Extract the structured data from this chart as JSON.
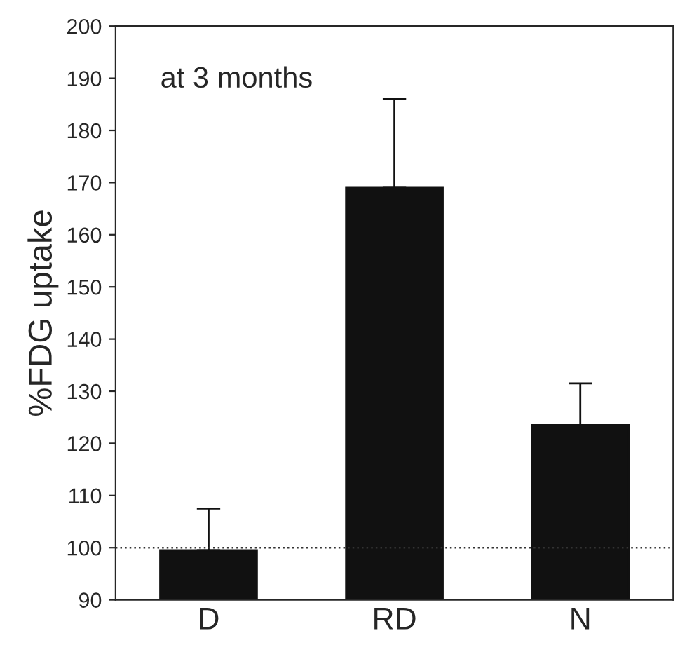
{
  "chart_data": {
    "type": "bar",
    "ylabel": "%FDG uptake",
    "categories": [
      "D",
      "RD",
      "N"
    ],
    "values": [
      99.5,
      169,
      123.5
    ],
    "errors": [
      [
        99.5,
        107.5
      ],
      [
        169,
        186
      ],
      [
        123.5,
        131.5
      ]
    ],
    "color": "#111111",
    "ylim": [
      90,
      200
    ],
    "yticks": [
      90,
      100,
      110,
      120,
      130,
      140,
      150,
      160,
      170,
      180,
      190,
      200
    ],
    "ref_lines": [
      {
        "axis": "y",
        "value": 100,
        "line_style": "dotted",
        "color": "#333333"
      }
    ],
    "annotations": [
      "at 3 months"
    ],
    "grid": false,
    "legend": false
  }
}
